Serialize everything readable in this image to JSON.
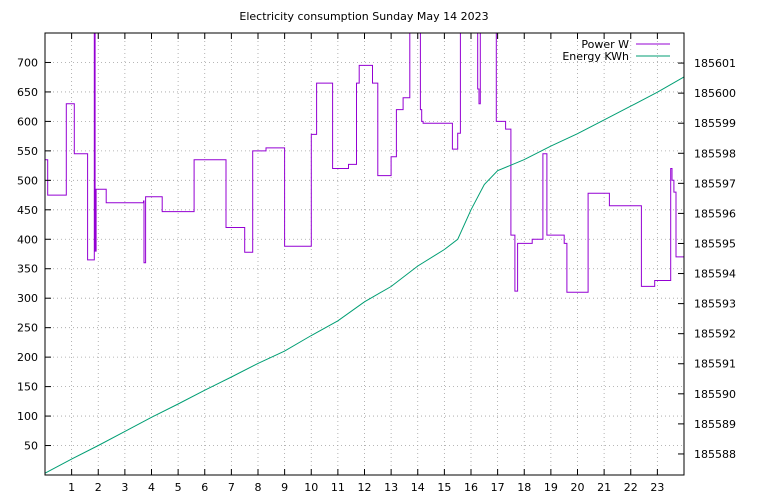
{
  "chart_data": {
    "type": "line",
    "title": "Electricity consumption Sunday May 14 2023",
    "xlabel": "",
    "ylabel": "",
    "y2label": "",
    "xlim": [
      0,
      24
    ],
    "ylim": [
      0,
      750
    ],
    "y2lim": [
      185587.3,
      185602.0
    ],
    "x_ticks": [
      1,
      2,
      3,
      4,
      5,
      6,
      7,
      8,
      9,
      10,
      11,
      12,
      13,
      14,
      15,
      16,
      17,
      18,
      19,
      20,
      21,
      22,
      23
    ],
    "y_ticks": [
      50,
      100,
      150,
      200,
      250,
      300,
      350,
      400,
      450,
      500,
      550,
      600,
      650,
      700
    ],
    "y2_ticks": [
      185588,
      185589,
      185590,
      185591,
      185592,
      185593,
      185594,
      185595,
      185596,
      185597,
      185598,
      185599,
      185600,
      185601
    ],
    "grid": true,
    "legend_position": "top-right",
    "series": [
      {
        "name": "Power W",
        "color": "#9400d3",
        "axis": "left",
        "step": true,
        "x": [
          0,
          0.1,
          0.8,
          1.1,
          1.6,
          1.85,
          1.88,
          1.92,
          2.0,
          2.3,
          3.7,
          3.72,
          3.78,
          4.4,
          5.5,
          5.6,
          6.2,
          6.8,
          7.5,
          7.8,
          8.3,
          9.0,
          9.3,
          9.4,
          10.0,
          10.05,
          10.2,
          10.8,
          11.4,
          11.7,
          11.8,
          12.3,
          12.4,
          12.5,
          12.8,
          13.0,
          13.2,
          13.45,
          13.7,
          13.75,
          14.0,
          14.1,
          14.15,
          14.2,
          14.3,
          14.5,
          14.8,
          15.0,
          15.3,
          15.4,
          15.5,
          15.6,
          16.2,
          16.25,
          16.3,
          16.35,
          16.45,
          16.55,
          16.95,
          17.0,
          17.3,
          17.5,
          17.65,
          17.75,
          17.8,
          18.3,
          18.7,
          18.85,
          19.3,
          19.5,
          19.6,
          20.0,
          20.4,
          21.2,
          22.4,
          22.9,
          23.5,
          23.55,
          23.62,
          23.7
        ],
        "values": [
          535,
          475,
          630,
          545,
          365,
          750,
          380,
          485,
          485,
          462,
          465,
          360,
          472,
          447,
          447,
          535,
          535,
          420,
          378,
          550,
          555,
          388,
          388,
          388,
          578,
          578,
          665,
          520,
          527,
          665,
          695,
          665,
          665,
          508,
          508,
          540,
          620,
          640,
          750,
          750,
          750,
          620,
          600,
          597,
          597,
          597,
          597,
          597,
          553,
          553,
          580,
          750,
          750,
          655,
          630,
          750,
          750,
          750,
          600,
          600,
          587,
          407,
          312,
          393,
          393,
          400,
          545,
          407,
          407,
          393,
          310,
          310,
          478,
          457,
          320,
          330,
          520,
          500,
          480,
          370
        ]
      },
      {
        "name": "Energy KWh",
        "color": "#009e73",
        "axis": "right",
        "step": false,
        "x": [
          0,
          1,
          2,
          3,
          4,
          5,
          6,
          7,
          8,
          9,
          10,
          11,
          12,
          13,
          14,
          15,
          15.5,
          16,
          16.5,
          17,
          18,
          19,
          20,
          21,
          22,
          23,
          24
        ],
        "values": [
          185587.36,
          185587.83,
          185588.28,
          185588.75,
          185589.22,
          185589.66,
          185590.12,
          185590.56,
          185591.01,
          185591.42,
          185591.94,
          185592.43,
          185593.06,
          185593.57,
          185594.25,
          185594.8,
          185595.14,
          185596.12,
          185596.96,
          185597.42,
          185597.79,
          185598.24,
          185598.65,
          185599.11,
          185599.57,
          185600.03,
          185600.54
        ]
      }
    ]
  }
}
